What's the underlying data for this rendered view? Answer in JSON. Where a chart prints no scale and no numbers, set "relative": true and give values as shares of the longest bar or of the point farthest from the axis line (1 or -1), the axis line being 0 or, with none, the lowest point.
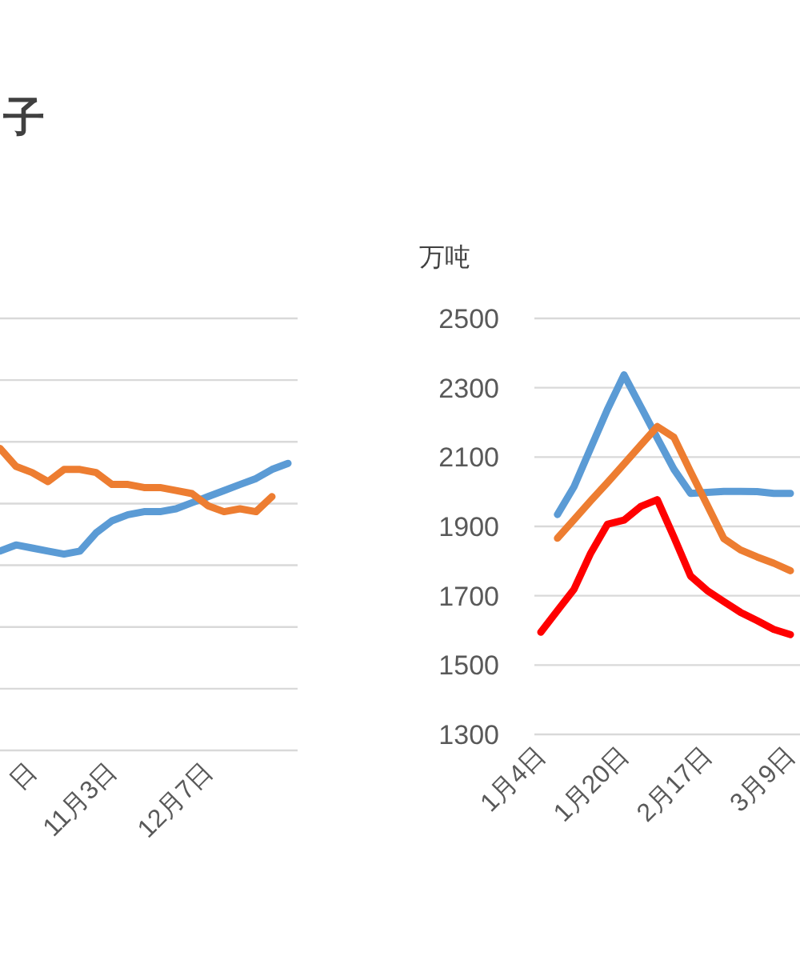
{
  "chart_data": [
    {
      "type": "line",
      "title": "子",
      "relative": true,
      "grid": true,
      "categories": [
        null,
        null,
        "日",
        null,
        null,
        null,
        null,
        "11月3日",
        null,
        null,
        null,
        null,
        null,
        "12月7日",
        null,
        null,
        null,
        null,
        null
      ],
      "series": [
        {
          "color": "#5b9bd5",
          "values": [
            0.66,
            0.68,
            0.67,
            0.66,
            0.65,
            0.66,
            0.72,
            0.76,
            0.78,
            0.79,
            0.79,
            0.8,
            0.82,
            0.84,
            0.86,
            0.88,
            0.9,
            0.93,
            0.95
          ]
        },
        {
          "color": "#ed7d31",
          "values": [
            1,
            0.94,
            0.92,
            0.89,
            0.93,
            0.93,
            0.92,
            0.88,
            0.88,
            0.87,
            0.87,
            0.86,
            0.85,
            0.81,
            0.79,
            0.8,
            0.79,
            0.84,
            null
          ]
        }
      ]
    },
    {
      "type": "line",
      "ylabel": "万吨",
      "grid": "y",
      "ylim": [
        1300,
        2500
      ],
      "yticks": [
        1300,
        1500,
        1700,
        1900,
        2100,
        2300,
        2500
      ],
      "categories": [
        "1月4日",
        null,
        null,
        null,
        null,
        "1月20日",
        null,
        null,
        null,
        null,
        "2月17日",
        null,
        null,
        null,
        null,
        "3月9日"
      ],
      "series": [
        {
          "color": "#5b9bd5",
          "values": [
            null,
            1934,
            2015,
            2126,
            2237,
            2337,
            2246,
            2155,
            2065,
            1995,
            1998,
            2001,
            2001,
            2000,
            1995,
            1995
          ]
        },
        {
          "color": "#ed7d31",
          "values": [
            null,
            1866,
            1920,
            1974,
            2026,
            2080,
            2134,
            2188,
            2157,
            2058,
            1962,
            1865,
            1832,
            1812,
            1794,
            1772
          ]
        },
        {
          "color": "#ff0000",
          "values": [
            1595,
            1657,
            1719,
            1823,
            1906,
            1918,
            1957,
            1977,
            1869,
            1757,
            1715,
            1683,
            1652,
            1628,
            1603,
            1588
          ]
        }
      ]
    }
  ]
}
